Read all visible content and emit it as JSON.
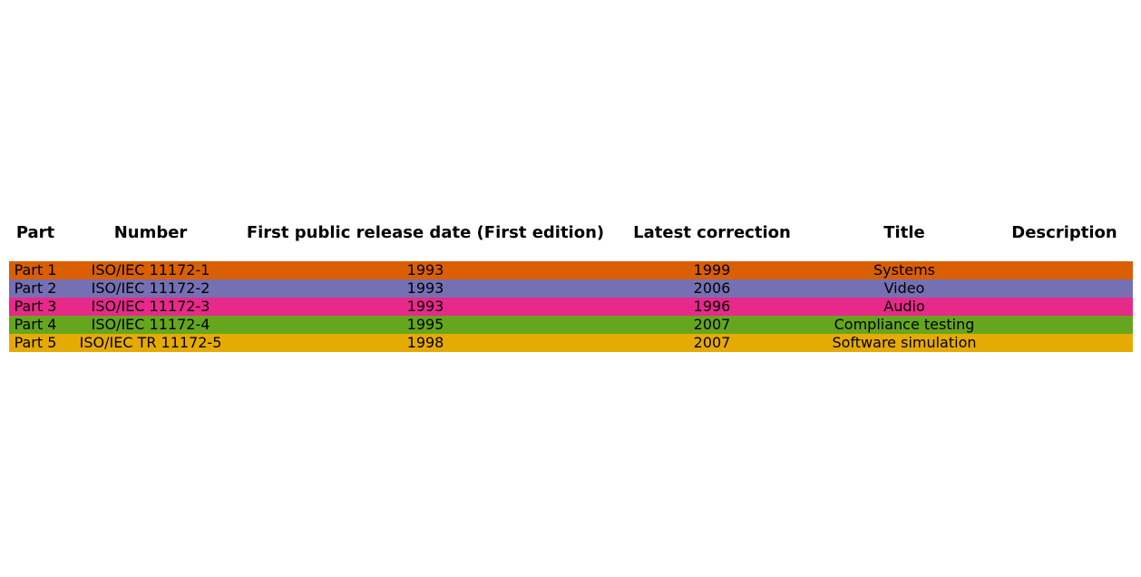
{
  "chart_data": {
    "type": "table",
    "columns": [
      "Part",
      "Number",
      "First public release date (First edition)",
      "Latest correction",
      "Title",
      "Description"
    ],
    "rows": [
      {
        "cells": [
          "Part 1",
          "ISO/IEC 11172-1",
          "1993",
          "1999",
          "Systems",
          ""
        ],
        "color": "#d95f02"
      },
      {
        "cells": [
          "Part 2",
          "ISO/IEC 11172-2",
          "1993",
          "2006",
          "Video",
          ""
        ],
        "color": "#7570b3"
      },
      {
        "cells": [
          "Part 3",
          "ISO/IEC 11172-3",
          "1993",
          "1996",
          "Audio",
          ""
        ],
        "color": "#e7298a"
      },
      {
        "cells": [
          "Part 4",
          "ISO/IEC 11172-4",
          "1995",
          "2007",
          "Compliance testing",
          ""
        ],
        "color": "#66a61e"
      },
      {
        "cells": [
          "Part 5",
          "ISO/IEC TR 11172-5",
          "1998",
          "2007",
          "Software simulation",
          ""
        ],
        "color": "#e6ab02"
      }
    ]
  }
}
